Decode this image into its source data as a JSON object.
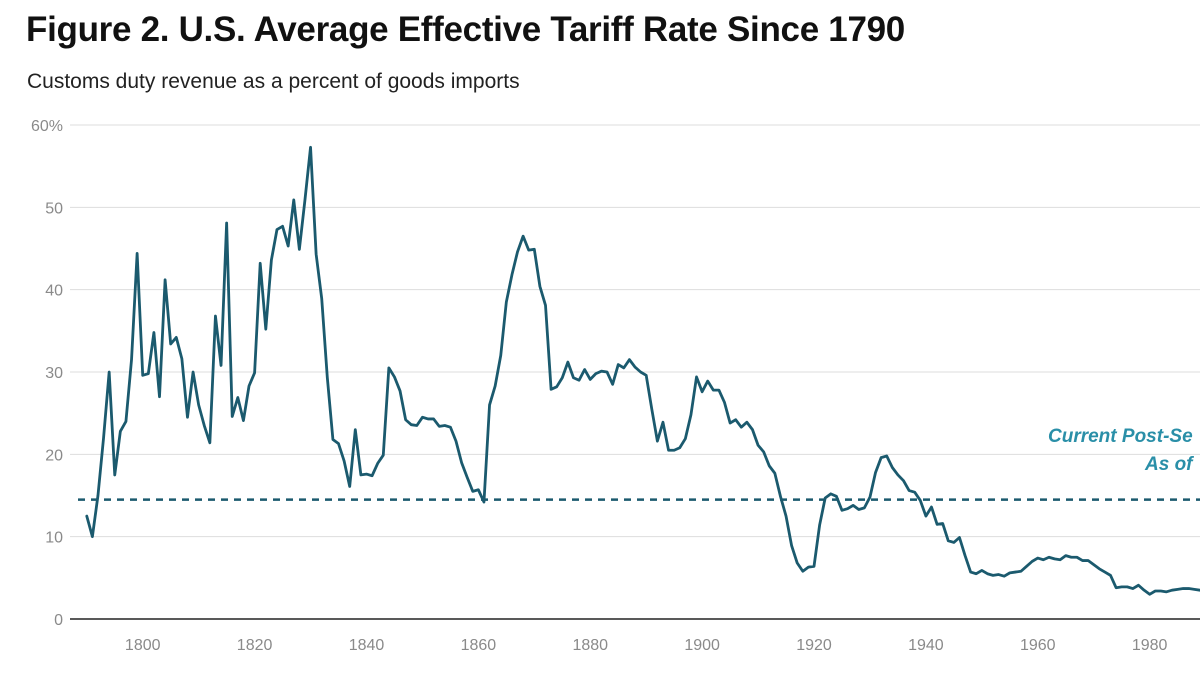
{
  "title": "Figure 2. U.S. Average Effective Tariff Rate Since 1790",
  "subtitle": "Customs duty revenue as a percent of goods imports",
  "colors": {
    "line": "#1b5a6e",
    "reference": "#1b5a6e",
    "annotation": "#2a8fa8",
    "grid": "#dddddd",
    "axis": "#222222",
    "tick_text": "#8a8a8a"
  },
  "annotation": {
    "line1": "Current Post-Se",
    "line2": "As of"
  },
  "chart_data": {
    "type": "line",
    "title": "Figure 2. U.S. Average Effective Tariff Rate Since 1790",
    "subtitle": "Customs duty revenue as a percent of goods imports",
    "xlabel": "",
    "ylabel": "",
    "xlim": [
      1787,
      1989
    ],
    "ylim": [
      0,
      60
    ],
    "x_ticks": [
      1800,
      1820,
      1840,
      1860,
      1880,
      1900,
      1920,
      1940,
      1960,
      1980
    ],
    "y_ticks": [
      0,
      10,
      20,
      30,
      40,
      50,
      60
    ],
    "y_tick_labels": [
      "0",
      "10",
      "20",
      "30",
      "40",
      "50",
      "60%"
    ],
    "x_tick_labels": [
      "1800",
      "1820",
      "1840",
      "1860",
      "1880",
      "1900",
      "1920",
      "1940",
      "1960",
      "1980"
    ],
    "grid": "horizontal",
    "reference_line": {
      "y": 14.5,
      "style": "dashed"
    },
    "series": [
      {
        "x": [
          1790,
          1791,
          1792,
          1793,
          1794,
          1795,
          1796,
          1797,
          1798,
          1799,
          1800,
          1801,
          1802,
          1803,
          1804,
          1805,
          1806,
          1807,
          1808,
          1809,
          1810,
          1811,
          1812,
          1813,
          1814,
          1815,
          1816,
          1817,
          1818,
          1819,
          1820,
          1821,
          1822,
          1823,
          1824,
          1825,
          1826,
          1827,
          1828,
          1829,
          1830,
          1831,
          1832,
          1833,
          1834,
          1835,
          1836,
          1837,
          1838,
          1839,
          1840,
          1841,
          1842,
          1843,
          1844,
          1845,
          1846,
          1847,
          1848,
          1849,
          1850,
          1851,
          1852,
          1853,
          1854,
          1855,
          1856,
          1857,
          1858,
          1859,
          1860,
          1861,
          1862,
          1863,
          1864,
          1865,
          1866,
          1867,
          1868,
          1869,
          1870,
          1871,
          1872,
          1873,
          1874,
          1875,
          1876,
          1877,
          1878,
          1879,
          1880,
          1881,
          1882,
          1883,
          1884,
          1885,
          1886,
          1887,
          1888,
          1889,
          1890,
          1891,
          1892,
          1893,
          1894,
          1895,
          1896,
          1897,
          1898,
          1899,
          1900,
          1901,
          1902,
          1903,
          1904,
          1905,
          1906,
          1907,
          1908,
          1909,
          1910,
          1911,
          1912,
          1913,
          1914,
          1915,
          1916,
          1917,
          1918,
          1919,
          1920,
          1921,
          1922,
          1923,
          1924,
          1925,
          1926,
          1927,
          1928,
          1929,
          1930,
          1931,
          1932,
          1933,
          1934,
          1935,
          1936,
          1937,
          1938,
          1939,
          1940,
          1941,
          1942,
          1943,
          1944,
          1945,
          1946,
          1947,
          1948,
          1949,
          1950,
          1951,
          1952,
          1953,
          1954,
          1955,
          1956,
          1957,
          1958,
          1959,
          1960,
          1961,
          1962,
          1963,
          1964,
          1965,
          1966,
          1967,
          1968,
          1969,
          1970,
          1971,
          1972,
          1973,
          1974,
          1975,
          1976,
          1977,
          1978,
          1979,
          1980,
          1981,
          1982,
          1983,
          1984,
          1985,
          1986,
          1987,
          1988,
          1989
        ],
        "values": [
          12.5,
          10.0,
          15.0,
          22.0,
          30.0,
          17.5,
          22.8,
          24.0,
          31.5,
          44.4,
          29.6,
          29.8,
          34.8,
          27.0,
          41.2,
          33.4,
          34.2,
          31.6,
          24.5,
          30.0,
          26.0,
          23.5,
          21.4,
          36.8,
          30.8,
          48.1,
          24.6,
          26.9,
          24.1,
          28.3,
          29.9,
          43.2,
          35.2,
          43.6,
          47.3,
          47.7,
          45.3,
          50.9,
          44.9,
          50.9,
          57.3,
          44.3,
          38.9,
          29.3,
          21.8,
          21.3,
          19.2,
          16.1,
          23.0,
          17.5,
          17.6,
          17.4,
          18.9,
          19.9,
          30.5,
          29.4,
          27.7,
          24.2,
          23.6,
          23.5,
          24.5,
          24.3,
          24.3,
          23.4,
          23.5,
          23.3,
          21.6,
          19.0,
          17.2,
          15.5,
          15.7,
          14.2,
          26.0,
          28.3,
          32.0,
          38.5,
          41.8,
          44.6,
          46.5,
          44.8,
          44.9,
          40.4,
          38.1,
          27.9,
          28.2,
          29.3,
          31.2,
          29.3,
          29.0,
          30.3,
          29.1,
          29.8,
          30.1,
          30.0,
          28.5,
          30.9,
          30.5,
          31.5,
          30.6,
          30.0,
          29.6,
          25.5,
          21.6,
          23.9,
          20.5,
          20.5,
          20.8,
          21.9,
          24.8,
          29.4,
          27.6,
          28.9,
          27.8,
          27.8,
          26.3,
          23.8,
          24.2,
          23.3,
          23.9,
          23.0,
          21.1,
          20.3,
          18.6,
          17.7,
          14.9,
          12.5,
          8.9,
          6.8,
          5.8,
          6.3,
          6.4,
          11.4,
          14.7,
          15.2,
          14.9,
          13.2,
          13.4,
          13.8,
          13.3,
          13.5,
          14.8,
          17.8,
          19.6,
          19.8,
          18.4,
          17.5,
          16.8,
          15.6,
          15.4,
          14.4,
          12.5,
          13.6,
          11.5,
          11.6,
          9.5,
          9.3,
          9.9,
          7.7,
          5.7,
          5.5,
          5.9,
          5.5,
          5.3,
          5.4,
          5.2,
          5.6,
          5.7,
          5.8,
          6.4,
          7.0,
          7.4,
          7.2,
          7.5,
          7.3,
          7.2,
          7.7,
          7.5,
          7.5,
          7.1,
          7.1,
          6.6,
          6.1,
          5.7,
          5.3,
          3.8,
          3.9,
          3.9,
          3.7,
          4.1,
          3.5,
          3.0,
          3.4,
          3.4,
          3.3,
          3.5,
          3.6,
          3.7,
          3.7,
          3.6,
          3.5
        ]
      }
    ]
  }
}
